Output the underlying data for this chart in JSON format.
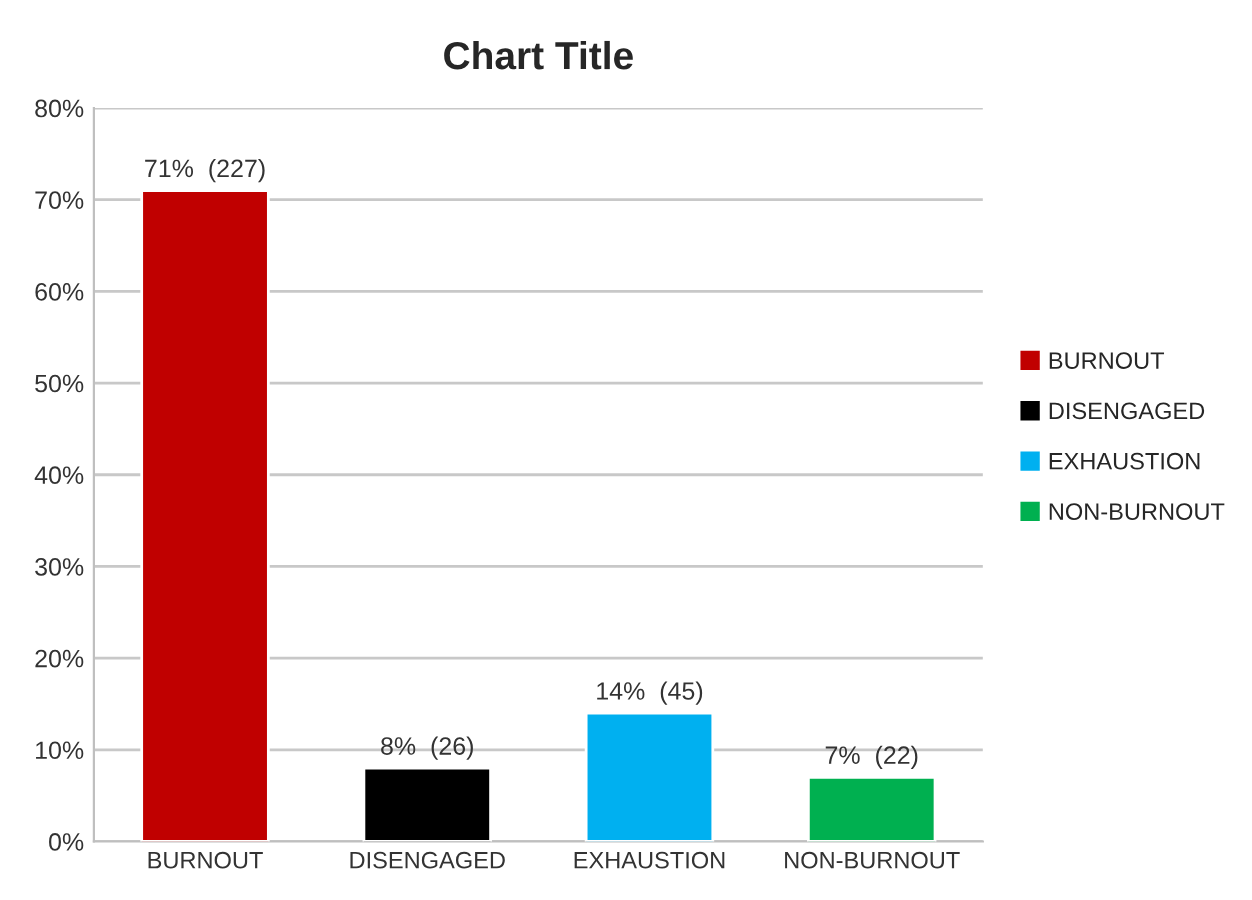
{
  "chart_data": {
    "type": "bar",
    "title": "Chart Title",
    "categories": [
      "BURNOUT",
      "DISENGAGED",
      "EXHAUSTION",
      "NON-BURNOUT"
    ],
    "series": [
      {
        "name": "BURNOUT",
        "color": "#c00000",
        "values": [
          71,
          null,
          null,
          null
        ],
        "value_labels": [
          "71%  (227)",
          null,
          null,
          null
        ]
      },
      {
        "name": "DISENGAGED",
        "color": "#000000",
        "values": [
          null,
          8,
          null,
          null
        ],
        "value_labels": [
          null,
          "8%  (26)",
          null,
          null
        ]
      },
      {
        "name": "EXHAUSTION",
        "color": "#00b0f0",
        "values": [
          null,
          null,
          14,
          null
        ],
        "value_labels": [
          null,
          null,
          "14%  (45)",
          null
        ]
      },
      {
        "name": "NON-BURNOUT",
        "color": "#00b050",
        "values": [
          null,
          null,
          null,
          7
        ],
        "value_labels": [
          null,
          null,
          null,
          "7%  (22)"
        ]
      }
    ],
    "ylim": [
      0,
      80
    ],
    "yticks": [
      {
        "value": 0,
        "label": "0%"
      },
      {
        "value": 10,
        "label": "10%"
      },
      {
        "value": 20,
        "label": "20%"
      },
      {
        "value": 30,
        "label": "30%"
      },
      {
        "value": 40,
        "label": "40%"
      },
      {
        "value": 50,
        "label": "50%"
      },
      {
        "value": 60,
        "label": "60%"
      },
      {
        "value": 70,
        "label": "70%"
      },
      {
        "value": 80,
        "label": "80%"
      }
    ],
    "grid": "y",
    "legend": "right"
  }
}
